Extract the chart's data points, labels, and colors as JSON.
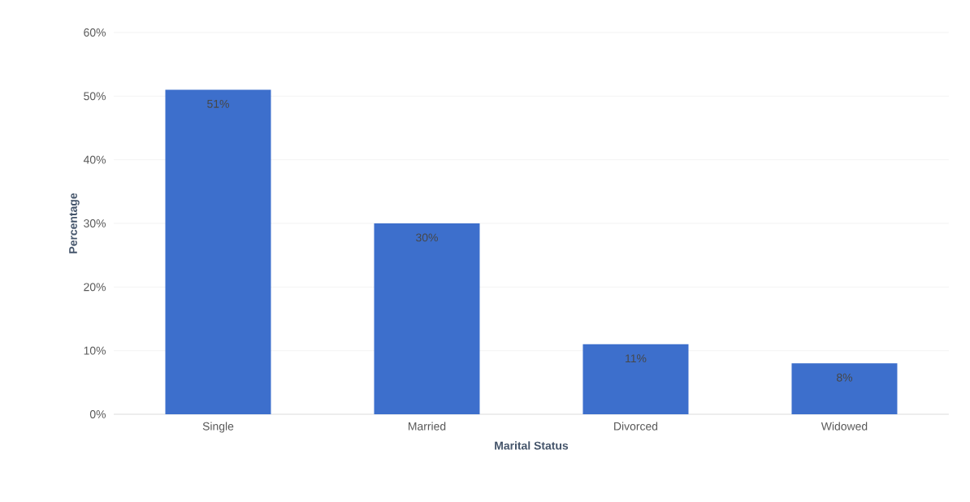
{
  "chart_data": {
    "type": "bar",
    "xlabel": "Marital Status",
    "ylabel": "Percentage",
    "categories": [
      "Single",
      "Married",
      "Divorced",
      "Widowed"
    ],
    "values": [
      51,
      30,
      11,
      8
    ],
    "value_labels": [
      "51%",
      "30%",
      "11%",
      "8%"
    ],
    "color": "#3d6fcc",
    "ylim": [
      0,
      60
    ],
    "yticks": [
      {
        "value": 0,
        "label": "0%"
      },
      {
        "value": 10,
        "label": "10%"
      },
      {
        "value": 20,
        "label": "20%"
      },
      {
        "value": 30,
        "label": "30%"
      },
      {
        "value": 40,
        "label": "40%"
      },
      {
        "value": 50,
        "label": "50%"
      },
      {
        "value": 60,
        "label": "60%"
      }
    ],
    "grid": "y"
  }
}
